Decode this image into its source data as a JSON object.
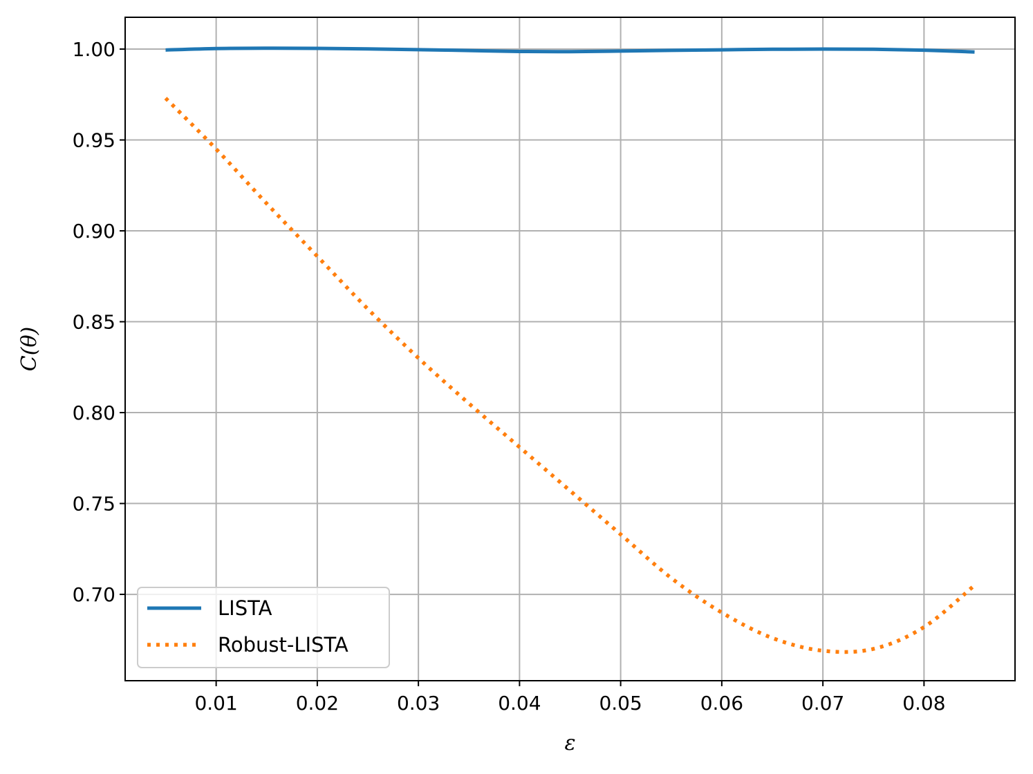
{
  "chart_data": {
    "type": "line",
    "xlabel": "ε",
    "ylabel": "C(θ)",
    "xlim": [
      0.001,
      0.089
    ],
    "ylim": [
      0.6525,
      1.0175
    ],
    "xticks": [
      0.01,
      0.02,
      0.03,
      0.04,
      0.05,
      0.06,
      0.07,
      0.08
    ],
    "xtick_labels": [
      "0.01",
      "0.02",
      "0.03",
      "0.04",
      "0.05",
      "0.06",
      "0.07",
      "0.08"
    ],
    "yticks": [
      0.7,
      0.75,
      0.8,
      0.85,
      0.9,
      0.95,
      1.0
    ],
    "ytick_labels": [
      "0.70",
      "0.75",
      "0.80",
      "0.85",
      "0.90",
      "0.95",
      "1.00"
    ],
    "grid": true,
    "legend_position": "lower-left",
    "series": [
      {
        "name": "LISTA",
        "style": "solid",
        "color": "#1f77b4",
        "x": [
          0.005,
          0.01,
          0.015,
          0.02,
          0.025,
          0.03,
          0.035,
          0.04,
          0.045,
          0.05,
          0.055,
          0.06,
          0.065,
          0.07,
          0.075,
          0.08,
          0.085
        ],
        "y": [
          0.9995,
          1.0003,
          1.0005,
          1.0004,
          1.0001,
          0.9997,
          0.9992,
          0.9987,
          0.9986,
          0.9989,
          0.9993,
          0.9996,
          0.9999,
          1.0,
          0.9999,
          0.9994,
          0.9984
        ]
      },
      {
        "name": "Robust-LISTA",
        "style": "dotted",
        "color": "#ff7f0e",
        "x": [
          0.005,
          0.01,
          0.015,
          0.02,
          0.025,
          0.03,
          0.035,
          0.04,
          0.045,
          0.05,
          0.055,
          0.06,
          0.065,
          0.07,
          0.075,
          0.08,
          0.085
        ],
        "y": [
          0.973,
          0.945,
          0.915,
          0.886,
          0.857,
          0.83,
          0.805,
          0.781,
          0.757,
          0.733,
          0.709,
          0.69,
          0.676,
          0.669,
          0.67,
          0.682,
          0.705
        ]
      }
    ]
  }
}
